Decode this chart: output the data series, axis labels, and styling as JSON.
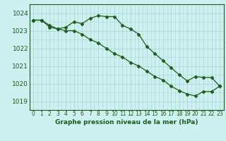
{
  "title": "Graphe pression niveau de la mer (hPa)",
  "background_color": "#cff0f0",
  "grid_color": "#aad8d8",
  "line_color": "#1a5c1a",
  "marker_color": "#1a5c1a",
  "xlim": [
    -0.5,
    23.5
  ],
  "ylim": [
    1018.5,
    1024.5
  ],
  "yticks": [
    1019,
    1020,
    1021,
    1022,
    1023,
    1024
  ],
  "xtick_labels": [
    "0",
    "1",
    "2",
    "3",
    "4",
    "5",
    "6",
    "7",
    "8",
    "9",
    "10",
    "11",
    "12",
    "13",
    "14",
    "15",
    "16",
    "17",
    "18",
    "19",
    "20",
    "21",
    "22",
    "23"
  ],
  "xticks": [
    0,
    1,
    2,
    3,
    4,
    5,
    6,
    7,
    8,
    9,
    10,
    11,
    12,
    13,
    14,
    15,
    16,
    17,
    18,
    19,
    20,
    21,
    22,
    23
  ],
  "line1_x": [
    0,
    1,
    2,
    3,
    4,
    5,
    6,
    7,
    8,
    9,
    10,
    11,
    12,
    13,
    14,
    15,
    16,
    17,
    18,
    19,
    20,
    21,
    22,
    23
  ],
  "line1_y": [
    1023.6,
    1023.6,
    1023.3,
    1023.1,
    1023.2,
    1023.5,
    1023.4,
    1023.7,
    1023.85,
    1023.8,
    1023.8,
    1023.3,
    1023.1,
    1022.8,
    1022.1,
    1021.7,
    1021.3,
    1020.9,
    1020.5,
    1020.15,
    1020.4,
    1020.35,
    1020.35,
    1019.85
  ],
  "line2_x": [
    0,
    1,
    2,
    3,
    4,
    5,
    6,
    7,
    8,
    9,
    10,
    11,
    12,
    13,
    14,
    15,
    16,
    17,
    18,
    19,
    20,
    21,
    22,
    23
  ],
  "line2_y": [
    1023.6,
    1023.6,
    1023.2,
    1023.1,
    1023.0,
    1023.0,
    1022.8,
    1022.5,
    1022.3,
    1022.0,
    1021.7,
    1021.5,
    1021.2,
    1021.0,
    1020.7,
    1020.4,
    1020.2,
    1019.85,
    1019.6,
    1019.4,
    1019.3,
    1019.55,
    1019.55,
    1019.85
  ]
}
